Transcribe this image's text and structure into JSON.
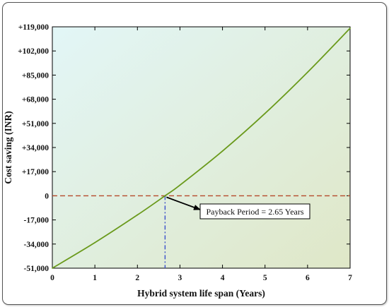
{
  "chart_data": {
    "type": "line",
    "title": "",
    "xlabel": "Hybrid system life span (Years)",
    "ylabel": "Cost saving (INR)",
    "xlim": [
      0,
      7
    ],
    "ylim": [
      -51000,
      119000
    ],
    "x_ticks": [
      "0",
      "1",
      "2",
      "3",
      "4",
      "5",
      "6",
      "7"
    ],
    "x_tick_values": [
      0,
      1,
      2,
      3,
      4,
      5,
      6,
      7
    ],
    "y_ticks": [
      "+119,000",
      "+102,000",
      "+85,000",
      "+68,000",
      "+51,000",
      "+34,000",
      "+17,000",
      "0",
      "-17,000",
      "-34,000",
      "-51,000"
    ],
    "y_tick_values": [
      119000,
      102000,
      85000,
      68000,
      51000,
      34000,
      17000,
      0,
      -17000,
      -34000,
      -51000
    ],
    "series": [
      {
        "color": "#6a9a1c",
        "x": [
          0,
          1,
          2,
          2.65,
          3,
          4,
          5,
          6,
          7
        ],
        "y": [
          -51000,
          -33000,
          -13500,
          0,
          7500,
          31500,
          58000,
          87000,
          118000
        ]
      }
    ],
    "reference_lines": [
      {
        "orientation": "horizontal",
        "value": 0,
        "color": "#b5492a",
        "style": "dashed"
      },
      {
        "orientation": "vertical",
        "value": 2.65,
        "color": "#3b4fc9",
        "style": "dash-dot"
      }
    ],
    "annotations": [
      {
        "text": "Payback Period = 2.65 Years",
        "x": 2.65,
        "y": 0
      }
    ],
    "grid": false,
    "background_gradient": [
      "#e2f6f7",
      "#dfe7c7"
    ]
  }
}
